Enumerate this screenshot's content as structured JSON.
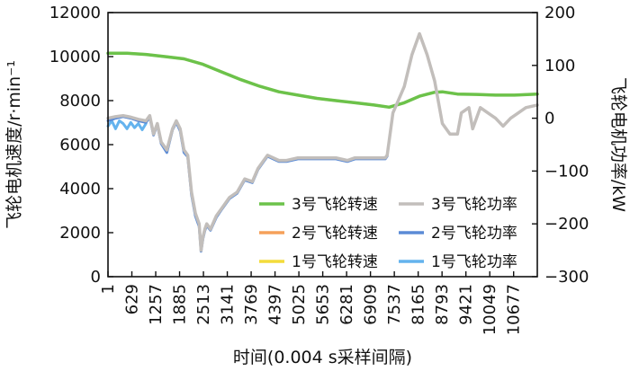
{
  "chart_data": {
    "type": "line",
    "xlabel": "时间(0.004 s采样间隔)",
    "ylabel_left": "飞轮电机速度/r·min⁻¹",
    "ylabel_right": "飞轮电机功率/kW",
    "xlim": [
      1,
      11300
    ],
    "ylim_left": [
      0,
      12000
    ],
    "ylim_right": [
      -300,
      200
    ],
    "x_ticks": [
      "1",
      "629",
      "1257",
      "1885",
      "2513",
      "3141",
      "3769",
      "4397",
      "5025",
      "5653",
      "6281",
      "6909",
      "7537",
      "8165",
      "8793",
      "9421",
      "10049",
      "10677"
    ],
    "y_left_ticks": [
      "0",
      "2000",
      "4000",
      "6000",
      "8000",
      "10000",
      "12000"
    ],
    "y_right_ticks": [
      "−300",
      "−200",
      "−100",
      "0",
      "100",
      "200"
    ],
    "legend": {
      "position": "lower-right",
      "items": [
        "3号飞轮转速",
        "3号飞轮功率",
        "2号飞轮转速",
        "2号飞轮功率",
        "1号飞轮转速",
        "1号飞轮功率"
      ]
    },
    "colors": {
      "speed3": "#6cc24a",
      "speed2": "#f5a15a",
      "speed1": "#f3dc3b",
      "power3": "#c2bebb",
      "power2": "#5b8bd6",
      "power1": "#64b3ee"
    },
    "series": [
      {
        "name": "3号飞轮转速",
        "axis": "left",
        "x": [
          1,
          500,
          1000,
          1500,
          2000,
          2500,
          3000,
          3500,
          4000,
          4500,
          5000,
          5500,
          6000,
          6500,
          7000,
          7400,
          7800,
          8200,
          8600,
          8800,
          9200,
          9700,
          10200,
          10700,
          11300
        ],
        "y": [
          10150,
          10150,
          10100,
          10000,
          9900,
          9650,
          9300,
          8950,
          8650,
          8400,
          8250,
          8100,
          8000,
          7900,
          7800,
          7700,
          7900,
          8200,
          8380,
          8400,
          8300,
          8280,
          8250,
          8250,
          8300
        ]
      },
      {
        "name": "2号飞轮转速",
        "axis": "left",
        "x": [
          1,
          500,
          1000,
          1500,
          2000,
          2500,
          3000,
          3500,
          4000,
          4500,
          5000,
          5500,
          6000,
          6500,
          7000,
          7400,
          7800,
          8200,
          8600,
          8800,
          9200,
          9700,
          10200,
          10700,
          11300
        ],
        "y": [
          10150,
          10150,
          10100,
          10000,
          9900,
          9650,
          9300,
          8950,
          8650,
          8400,
          8250,
          8100,
          8000,
          7900,
          7800,
          7700,
          7900,
          8200,
          8380,
          8400,
          8300,
          8280,
          8250,
          8250,
          8300
        ]
      },
      {
        "name": "1号飞轮转速",
        "axis": "left",
        "x": [
          1,
          500,
          1000,
          1500,
          2000,
          2500,
          3000,
          3500,
          4000,
          4500,
          5000,
          5500,
          6000,
          6500,
          7000,
          7400,
          7800,
          8200,
          8600,
          8800,
          9200,
          9700,
          10200,
          10700,
          11300
        ],
        "y": [
          10150,
          10150,
          10100,
          10000,
          9900,
          9650,
          9300,
          8950,
          8650,
          8400,
          8250,
          8100,
          8000,
          7900,
          7800,
          7700,
          7900,
          8200,
          8380,
          8400,
          8300,
          8280,
          8250,
          8250,
          8300
        ]
      },
      {
        "name": "3号飞轮功率",
        "axis": "right",
        "x": [
          1,
          200,
          400,
          600,
          800,
          1000,
          1100,
          1200,
          1300,
          1400,
          1550,
          1700,
          1800,
          1900,
          2000,
          2100,
          2200,
          2300,
          2400,
          2450,
          2500,
          2550,
          2600,
          2700,
          2850,
          3000,
          3200,
          3400,
          3600,
          3800,
          3950,
          4100,
          4200,
          4350,
          4500,
          4700,
          5000,
          5500,
          6000,
          6300,
          6500,
          6900,
          7100,
          7300,
          7350,
          7500,
          7800,
          8000,
          8200,
          8400,
          8600,
          8800,
          9000,
          9200,
          9300,
          9500,
          9600,
          9800,
          10000,
          10200,
          10400,
          10600,
          10800,
          11000,
          11300
        ],
        "x_note": "",
        "y": [
          0,
          3,
          5,
          2,
          -2,
          -5,
          5,
          -30,
          -10,
          -45,
          -60,
          -20,
          -5,
          -20,
          -60,
          -70,
          -140,
          -180,
          -200,
          -250,
          -225,
          -210,
          -200,
          -210,
          -185,
          -170,
          -150,
          -140,
          -115,
          -120,
          -95,
          -80,
          -70,
          -75,
          -80,
          -80,
          -75,
          -75,
          -75,
          -80,
          -75,
          -75,
          -75,
          -75,
          -70,
          10,
          60,
          120,
          160,
          120,
          70,
          -10,
          -30,
          -30,
          10,
          20,
          -20,
          20,
          10,
          0,
          -15,
          0,
          10,
          20,
          25
        ]
      },
      {
        "name": "2号飞轮功率",
        "axis": "right",
        "x": [
          1,
          200,
          400,
          600,
          800,
          1000,
          1100,
          1200,
          1300,
          1400,
          1550,
          1700,
          1800,
          1900,
          2000,
          2100,
          2200,
          2300,
          2400,
          2450,
          2500,
          2550,
          2600,
          2700,
          2850,
          3000,
          3200,
          3400,
          3600,
          3800,
          3950,
          4100,
          4200,
          4350,
          4500,
          4700,
          5000,
          5500,
          6000,
          6300,
          6500,
          6900,
          7100,
          7300,
          7350
        ],
        "y": [
          -5,
          0,
          3,
          0,
          -5,
          -8,
          2,
          -32,
          -12,
          -48,
          -65,
          -22,
          -8,
          -24,
          -65,
          -73,
          -145,
          -185,
          -205,
          -252,
          -228,
          -213,
          -203,
          -212,
          -188,
          -172,
          -152,
          -142,
          -117,
          -122,
          -97,
          -82,
          -72,
          -77,
          -82,
          -82,
          -77,
          -77,
          -77,
          -82,
          -77,
          -77,
          -77,
          -77,
          -72
        ]
      },
      {
        "name": "1号飞轮功率",
        "axis": "right",
        "x": [
          1,
          100,
          200,
          300,
          400,
          500,
          600,
          700,
          800,
          900,
          1000
        ],
        "y": [
          -15,
          -5,
          -20,
          -5,
          -10,
          -20,
          -8,
          -18,
          -10,
          -22,
          -10
        ]
      }
    ]
  }
}
